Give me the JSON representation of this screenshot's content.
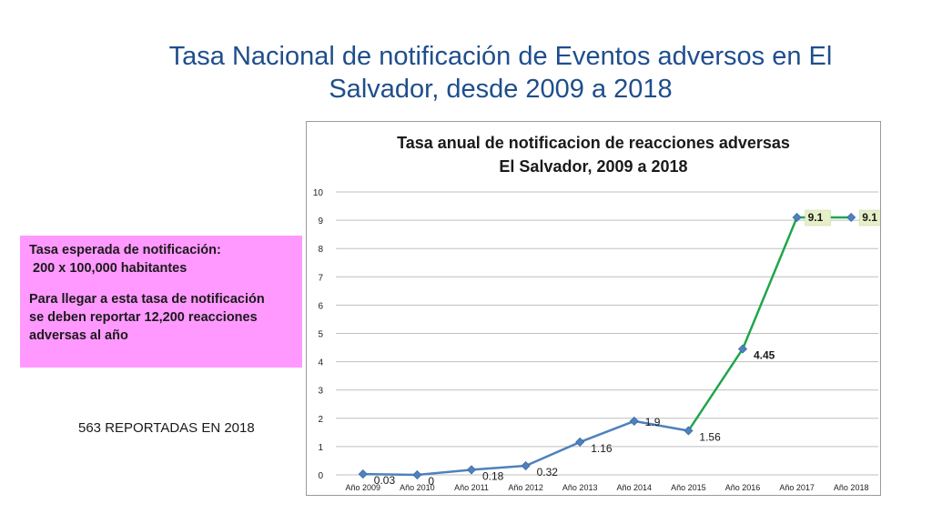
{
  "slide": {
    "title_line1": "Tasa Nacional de notificación de Eventos adversos en El",
    "title_line2": "Salvador, desde 2009 a 2018"
  },
  "note": {
    "line1": "Tasa esperada de notificación:",
    "line2": " 200 x 100,000 habitantes",
    "line3": "Para llegar a esta tasa de notificación",
    "line4": "se deben reportar 12,200 reacciones",
    "line5": "adversas al año"
  },
  "reported": "563 REPORTADAS EN 2018",
  "colors": {
    "title": "#1f4e8c",
    "series_blue": "#4f81bd",
    "series_green": "#1fa64a",
    "note_bg": "#ff99ff",
    "label_bg": "#e6efc8"
  },
  "chart_data": {
    "type": "line",
    "title_line1": "Tasa anual de notificacion de reacciones adversas",
    "title_line2": "El Salvador, 2009 a 2018",
    "categories": [
      "Año 2009",
      "Año 2010",
      "Año 2011",
      "Año 2012",
      "Año 2013",
      "Año 2014",
      "Año 2015",
      "Año 2016",
      "Año 2017",
      "Año 2018"
    ],
    "values": [
      0.03,
      0,
      0.18,
      0.32,
      1.16,
      1.9,
      1.56,
      4.45,
      9.1,
      9.1
    ],
    "labels": [
      "0.03",
      "0",
      "0.18",
      "0.32",
      "1.16",
      "1.9",
      "1.56",
      "4.45",
      "9.1",
      "9.1"
    ],
    "green_from_index": 6,
    "highlighted_label_indices": [
      8,
      9
    ],
    "ylim": [
      0,
      10
    ],
    "yticks": [
      0,
      1,
      2,
      3,
      4,
      5,
      6,
      7,
      8,
      9,
      10
    ],
    "grid": true,
    "xlabel": "",
    "ylabel": ""
  }
}
